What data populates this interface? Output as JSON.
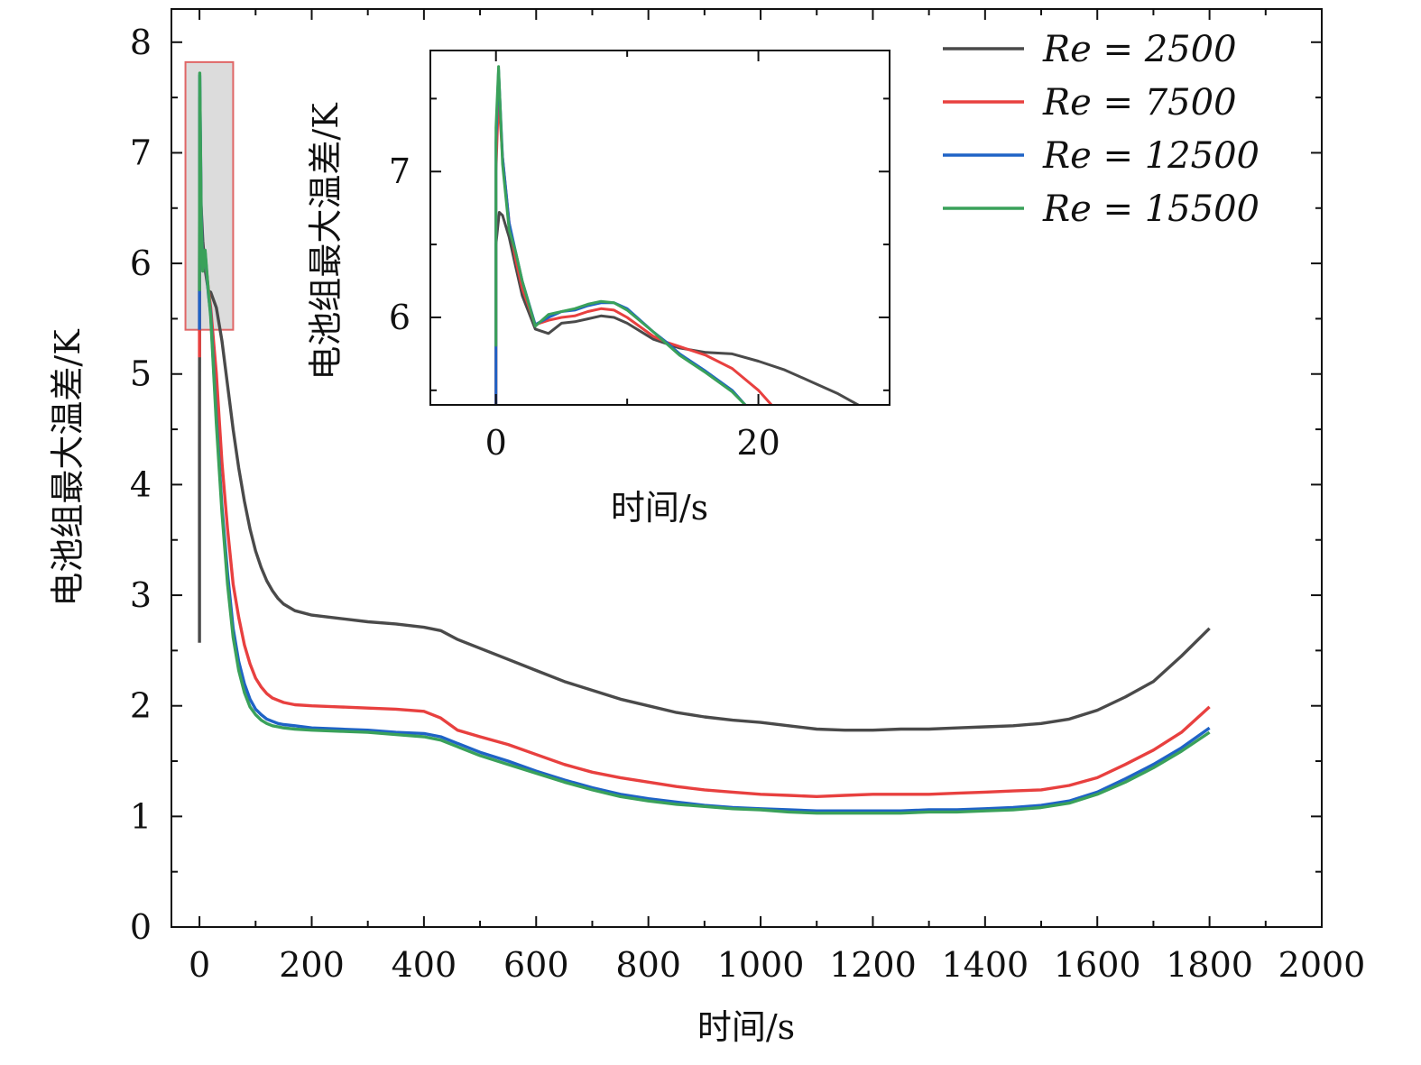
{
  "chart_data": [
    {
      "id": "main",
      "type": "line",
      "title": "",
      "xlabel": "时间/s",
      "ylabel": "电池组最大温差/K",
      "xlim": [
        -50,
        2000
      ],
      "ylim": [
        0,
        8.3
      ],
      "xticks": [
        0,
        200,
        400,
        600,
        800,
        1000,
        1200,
        1400,
        1600,
        1800,
        2000
      ],
      "yticks": [
        0,
        1,
        2,
        3,
        4,
        5,
        6,
        7,
        8
      ],
      "legend_position": "top-right",
      "highlight": {
        "x": [
          -25,
          60
        ],
        "y": [
          5.4,
          7.82
        ],
        "fill": "#dcdcdc",
        "stroke": "#e06666"
      },
      "series": [
        {
          "name": "Re = 2500",
          "legend_label": "Re = 2500",
          "color": "#4a4a4a",
          "x": [
            0,
            0,
            0.5,
            3,
            6,
            10,
            16,
            20,
            30,
            40,
            50,
            60,
            70,
            80,
            90,
            100,
            110,
            120,
            130,
            140,
            150,
            170,
            200,
            250,
            300,
            350,
            400,
            430,
            460,
            500,
            550,
            600,
            650,
            700,
            750,
            800,
            850,
            900,
            950,
            1000,
            1050,
            1100,
            1150,
            1200,
            1250,
            1300,
            1350,
            1400,
            1450,
            1500,
            1550,
            1600,
            1650,
            1700,
            1750,
            1800
          ],
          "y": [
            2.57,
            4.35,
            6.72,
            6.5,
            6.2,
            5.95,
            5.75,
            5.74,
            5.6,
            5.3,
            4.9,
            4.5,
            4.15,
            3.85,
            3.6,
            3.4,
            3.25,
            3.13,
            3.04,
            2.97,
            2.92,
            2.86,
            2.82,
            2.79,
            2.76,
            2.74,
            2.71,
            2.68,
            2.6,
            2.52,
            2.42,
            2.32,
            2.22,
            2.14,
            2.06,
            2.0,
            1.94,
            1.9,
            1.87,
            1.85,
            1.82,
            1.79,
            1.78,
            1.78,
            1.79,
            1.79,
            1.8,
            1.81,
            1.82,
            1.84,
            1.88,
            1.96,
            2.08,
            2.22,
            2.45,
            2.7
          ]
        },
        {
          "name": "Re = 7500",
          "legend_label": "Re = 7500",
          "color": "#e8403f",
          "x": [
            0,
            0,
            0.5,
            3,
            6,
            10,
            16,
            20,
            30,
            40,
            50,
            60,
            70,
            80,
            90,
            100,
            110,
            120,
            130,
            140,
            150,
            170,
            200,
            250,
            300,
            350,
            400,
            430,
            460,
            500,
            550,
            600,
            650,
            700,
            750,
            800,
            850,
            900,
            950,
            1000,
            1050,
            1100,
            1150,
            1200,
            1250,
            1300,
            1350,
            1400,
            1450,
            1500,
            1550,
            1600,
            1650,
            1700,
            1750,
            1800
          ],
          "y": [
            5.15,
            5.75,
            7.5,
            6.4,
            5.95,
            6.05,
            5.76,
            5.6,
            5.0,
            4.2,
            3.6,
            3.1,
            2.8,
            2.55,
            2.38,
            2.25,
            2.17,
            2.11,
            2.07,
            2.05,
            2.03,
            2.01,
            2.0,
            1.99,
            1.98,
            1.97,
            1.95,
            1.89,
            1.78,
            1.72,
            1.65,
            1.56,
            1.47,
            1.4,
            1.35,
            1.31,
            1.27,
            1.24,
            1.22,
            1.2,
            1.19,
            1.18,
            1.19,
            1.2,
            1.2,
            1.2,
            1.21,
            1.22,
            1.23,
            1.24,
            1.28,
            1.35,
            1.47,
            1.6,
            1.76,
            1.99
          ]
        },
        {
          "name": "Re = 12500",
          "legend_label": "Re = 12500",
          "color": "#1f63c6",
          "x": [
            0,
            0,
            0.5,
            3,
            6,
            10,
            16,
            20,
            30,
            40,
            50,
            60,
            70,
            80,
            90,
            100,
            110,
            120,
            130,
            140,
            150,
            170,
            200,
            250,
            300,
            350,
            400,
            430,
            460,
            500,
            550,
            600,
            650,
            700,
            750,
            800,
            850,
            900,
            950,
            1000,
            1050,
            1100,
            1150,
            1200,
            1250,
            1300,
            1350,
            1400,
            1450,
            1500,
            1550,
            1600,
            1650,
            1700,
            1750,
            1800
          ],
          "y": [
            5.4,
            5.75,
            7.7,
            6.45,
            5.95,
            6.1,
            5.72,
            5.55,
            4.6,
            3.8,
            3.2,
            2.7,
            2.4,
            2.2,
            2.06,
            1.97,
            1.92,
            1.88,
            1.86,
            1.84,
            1.83,
            1.82,
            1.8,
            1.79,
            1.78,
            1.76,
            1.75,
            1.72,
            1.66,
            1.58,
            1.5,
            1.41,
            1.33,
            1.26,
            1.2,
            1.16,
            1.13,
            1.1,
            1.08,
            1.07,
            1.06,
            1.05,
            1.05,
            1.05,
            1.05,
            1.06,
            1.06,
            1.07,
            1.08,
            1.1,
            1.14,
            1.22,
            1.34,
            1.47,
            1.62,
            1.8
          ]
        },
        {
          "name": "Re = 15500",
          "legend_label": "Re = 15500",
          "color": "#3aa15a",
          "x": [
            0,
            0,
            0.5,
            3,
            6,
            10,
            16,
            20,
            30,
            40,
            50,
            60,
            70,
            80,
            90,
            100,
            110,
            120,
            130,
            140,
            150,
            170,
            200,
            250,
            300,
            350,
            400,
            430,
            460,
            500,
            550,
            600,
            650,
            700,
            750,
            800,
            850,
            900,
            950,
            1000,
            1050,
            1100,
            1150,
            1200,
            1250,
            1300,
            1350,
            1400,
            1450,
            1500,
            1550,
            1600,
            1650,
            1700,
            1750,
            1800
          ],
          "y": [
            5.75,
            5.8,
            7.72,
            6.4,
            5.93,
            6.12,
            5.74,
            5.52,
            4.55,
            3.75,
            3.1,
            2.62,
            2.32,
            2.12,
            1.99,
            1.92,
            1.87,
            1.84,
            1.82,
            1.81,
            1.8,
            1.79,
            1.78,
            1.77,
            1.76,
            1.74,
            1.72,
            1.69,
            1.63,
            1.55,
            1.47,
            1.39,
            1.31,
            1.24,
            1.18,
            1.14,
            1.11,
            1.09,
            1.07,
            1.06,
            1.04,
            1.03,
            1.03,
            1.03,
            1.03,
            1.04,
            1.04,
            1.05,
            1.06,
            1.08,
            1.12,
            1.2,
            1.31,
            1.44,
            1.59,
            1.76
          ]
        }
      ]
    },
    {
      "id": "inset",
      "type": "line",
      "title": "",
      "xlabel": "时间/s",
      "ylabel": "电池组最大温差/K",
      "xlim": [
        -5,
        30
      ],
      "ylim": [
        5.4,
        7.83
      ],
      "xticks": [
        0,
        20
      ],
      "xticks_minor": [
        10
      ],
      "yticks": [
        6,
        7
      ],
      "yticks_minor": [
        5.5,
        6.5,
        7.5
      ],
      "series": [
        {
          "name": "Re = 2500",
          "color": "#4a4a4a",
          "x": [
            0,
            0,
            0.25,
            0.5,
            1,
            1.5,
            2,
            3,
            4,
            5,
            6,
            7,
            8,
            9,
            10,
            12,
            13,
            14,
            16,
            18,
            20,
            22,
            24,
            26,
            28,
            30
          ],
          "y": [
            4.5,
            6.5,
            6.72,
            6.7,
            6.55,
            6.35,
            6.15,
            5.92,
            5.89,
            5.96,
            5.97,
            5.99,
            6.01,
            6.0,
            5.96,
            5.85,
            5.82,
            5.79,
            5.76,
            5.75,
            5.7,
            5.64,
            5.56,
            5.48,
            5.38,
            5.28
          ]
        },
        {
          "name": "Re = 7500",
          "color": "#e8403f",
          "x": [
            0,
            0,
            0.2,
            0.5,
            1,
            1.5,
            2,
            3,
            4,
            5,
            6,
            7,
            8,
            9,
            10,
            12,
            13,
            14,
            16,
            18,
            20,
            21
          ],
          "y": [
            5.0,
            7.0,
            7.52,
            7.1,
            6.65,
            6.4,
            6.2,
            5.95,
            5.98,
            6.0,
            6.01,
            6.04,
            6.06,
            6.05,
            6.0,
            5.87,
            5.83,
            5.8,
            5.74,
            5.65,
            5.5,
            5.4
          ]
        },
        {
          "name": "Re = 12500",
          "color": "#1f63c6",
          "x": [
            0,
            0,
            0.2,
            0.5,
            1,
            1.5,
            2,
            3,
            4,
            5,
            6,
            7,
            8,
            9,
            10,
            12,
            13,
            14,
            16,
            18,
            19
          ],
          "y": [
            5.4,
            7.2,
            7.7,
            7.1,
            6.65,
            6.45,
            6.25,
            5.95,
            6.0,
            6.04,
            6.05,
            6.08,
            6.1,
            6.1,
            6.06,
            5.9,
            5.83,
            5.75,
            5.63,
            5.5,
            5.4
          ]
        },
        {
          "name": "Re = 15500",
          "color": "#3aa15a",
          "x": [
            0,
            0,
            0.2,
            0.5,
            1,
            1.5,
            2,
            3,
            4,
            5,
            6,
            7,
            8,
            9,
            10,
            12,
            13,
            14,
            16,
            18,
            19
          ],
          "y": [
            5.8,
            7.3,
            7.72,
            7.05,
            6.6,
            6.45,
            6.25,
            5.94,
            6.02,
            6.04,
            6.06,
            6.09,
            6.11,
            6.1,
            6.05,
            5.9,
            5.82,
            5.74,
            5.62,
            5.49,
            5.4
          ]
        }
      ]
    }
  ]
}
